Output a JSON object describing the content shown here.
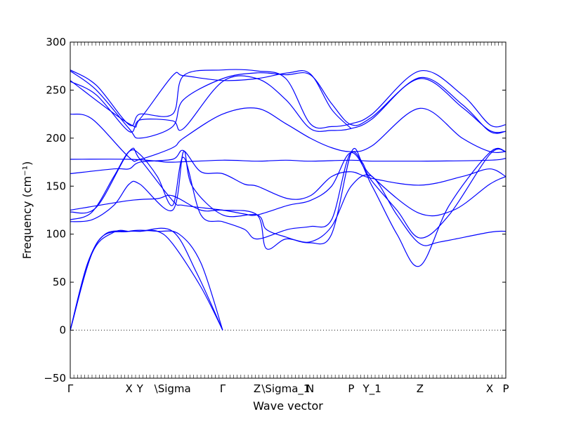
{
  "chart_data": {
    "type": "line",
    "title": "",
    "xlabel": "Wave vector",
    "ylabel": "Frequency (cm⁻¹)",
    "ylim": [
      -50,
      300
    ],
    "yticks": [
      -50,
      0,
      50,
      100,
      150,
      200,
      250,
      300
    ],
    "grid": false,
    "legend": "none",
    "series_color": "#0000ff",
    "zero_line": {
      "value": 0,
      "style": "dotted"
    },
    "xlim": [
      0,
      1
    ],
    "qpoints": [
      {
        "label": "Γ",
        "x": 0.0
      },
      {
        "label": "X",
        "x": 0.135
      },
      {
        "label": "Y",
        "x": 0.16
      },
      {
        "label": "\\Sigma",
        "x": 0.235
      },
      {
        "label": "Γ",
        "x": 0.35
      },
      {
        "label": "Z",
        "x": 0.429
      },
      {
        "label": "\\Sigma_1",
        "x": 0.495
      },
      {
        "label": "N",
        "x": 0.551
      },
      {
        "label": "P",
        "x": 0.645
      },
      {
        "label": "Y_1",
        "x": 0.693
      },
      {
        "label": "Z",
        "x": 0.803
      },
      {
        "label": "X",
        "x": 0.963
      },
      {
        "label": "P",
        "x": 1.0
      }
    ],
    "series": [
      {
        "points": [
          [
            0,
            0
          ],
          [
            0.04,
            70
          ],
          [
            0.08,
            100
          ],
          [
            0.135,
            103
          ],
          [
            0.16,
            103
          ],
          [
            0.235,
            103
          ],
          [
            0.29,
            60
          ],
          [
            0.35,
            0
          ]
        ]
      },
      {
        "points": [
          [
            0,
            0
          ],
          [
            0.05,
            80
          ],
          [
            0.1,
            102
          ],
          [
            0.135,
            103
          ],
          [
            0.16,
            103
          ],
          [
            0.2,
            103
          ],
          [
            0.235,
            90
          ],
          [
            0.3,
            45
          ],
          [
            0.35,
            0
          ]
        ]
      },
      {
        "points": [
          [
            0,
            0
          ],
          [
            0.06,
            90
          ],
          [
            0.135,
            103
          ],
          [
            0.2,
            103
          ],
          [
            0.25,
            100
          ],
          [
            0.3,
            70
          ],
          [
            0.35,
            0
          ]
        ]
      },
      {
        "points": [
          [
            0,
            113
          ],
          [
            0.05,
            115
          ],
          [
            0.1,
            130
          ],
          [
            0.135,
            152
          ],
          [
            0.16,
            152
          ],
          [
            0.235,
            125
          ],
          [
            0.26,
            186
          ],
          [
            0.28,
            150
          ],
          [
            0.35,
            120
          ],
          [
            0.429,
            120
          ],
          [
            0.45,
            105
          ],
          [
            0.495,
            97
          ],
          [
            0.55,
            91
          ],
          [
            0.6,
            100
          ],
          [
            0.645,
            185
          ],
          [
            0.67,
            175
          ],
          [
            0.693,
            160
          ],
          [
            0.8,
            122
          ],
          [
            0.88,
            125
          ],
          [
            0.963,
            152
          ],
          [
            1.0,
            160
          ]
        ]
      },
      {
        "points": [
          [
            0,
            115
          ],
          [
            0.05,
            123
          ],
          [
            0.1,
            160
          ],
          [
            0.135,
            186
          ],
          [
            0.16,
            183
          ],
          [
            0.2,
            160
          ],
          [
            0.235,
            130
          ],
          [
            0.26,
            180
          ],
          [
            0.3,
            120
          ],
          [
            0.35,
            113
          ],
          [
            0.4,
            105
          ],
          [
            0.429,
            95
          ],
          [
            0.5,
            105
          ],
          [
            0.551,
            108
          ],
          [
            0.6,
            115
          ],
          [
            0.645,
            185
          ],
          [
            0.693,
            150
          ],
          [
            0.75,
            100
          ],
          [
            0.803,
            67
          ],
          [
            0.87,
            130
          ],
          [
            0.963,
            185
          ],
          [
            1.0,
            186
          ]
        ]
      },
      {
        "points": [
          [
            0,
            123
          ],
          [
            0.06,
            128
          ],
          [
            0.135,
            186
          ],
          [
            0.16,
            178
          ],
          [
            0.235,
            135
          ],
          [
            0.26,
            130
          ],
          [
            0.35,
            125
          ],
          [
            0.4,
            121
          ],
          [
            0.429,
            120
          ],
          [
            0.5,
            130
          ],
          [
            0.551,
            135
          ],
          [
            0.6,
            150
          ],
          [
            0.645,
            185
          ],
          [
            0.693,
            155
          ],
          [
            0.75,
            125
          ],
          [
            0.803,
            96
          ],
          [
            0.87,
            120
          ],
          [
            0.963,
            183
          ],
          [
            1.0,
            186
          ]
        ]
      },
      {
        "points": [
          [
            0,
            125
          ],
          [
            0.135,
            135
          ],
          [
            0.2,
            137
          ],
          [
            0.235,
            140
          ],
          [
            0.3,
            125
          ],
          [
            0.35,
            125
          ],
          [
            0.429,
            120
          ],
          [
            0.45,
            85
          ],
          [
            0.495,
            95
          ],
          [
            0.551,
            92
          ],
          [
            0.6,
            108
          ],
          [
            0.645,
            150
          ],
          [
            0.693,
            160
          ],
          [
            0.75,
            120
          ],
          [
            0.803,
            90
          ],
          [
            0.85,
            92
          ],
          [
            0.963,
            102
          ],
          [
            1.0,
            103
          ]
        ]
      },
      {
        "points": [
          [
            0,
            163
          ],
          [
            0.1,
            168
          ],
          [
            0.135,
            168
          ],
          [
            0.16,
            175
          ],
          [
            0.235,
            178
          ],
          [
            0.26,
            187
          ],
          [
            0.3,
            165
          ],
          [
            0.35,
            163
          ],
          [
            0.4,
            152
          ],
          [
            0.429,
            150
          ],
          [
            0.5,
            137
          ],
          [
            0.551,
            140
          ],
          [
            0.6,
            160
          ],
          [
            0.645,
            165
          ],
          [
            0.693,
            158
          ],
          [
            0.803,
            151
          ],
          [
            0.9,
            160
          ],
          [
            0.963,
            168
          ],
          [
            1.0,
            160
          ]
        ]
      },
      {
        "points": [
          [
            0,
            178
          ],
          [
            0.135,
            178
          ],
          [
            0.2,
            176
          ],
          [
            0.235,
            175
          ],
          [
            0.35,
            177
          ],
          [
            0.429,
            176
          ],
          [
            0.495,
            177
          ],
          [
            0.551,
            176
          ],
          [
            0.645,
            177
          ],
          [
            0.693,
            176
          ],
          [
            0.803,
            176
          ],
          [
            0.963,
            177
          ],
          [
            1.0,
            179
          ]
        ]
      },
      {
        "points": [
          [
            0,
            225
          ],
          [
            0.05,
            220
          ],
          [
            0.135,
            180
          ],
          [
            0.16,
            178
          ],
          [
            0.235,
            190
          ],
          [
            0.26,
            200
          ],
          [
            0.35,
            225
          ],
          [
            0.429,
            231
          ],
          [
            0.495,
            215
          ],
          [
            0.551,
            200
          ],
          [
            0.6,
            190
          ],
          [
            0.645,
            186
          ],
          [
            0.693,
            192
          ],
          [
            0.803,
            231
          ],
          [
            0.9,
            200
          ],
          [
            0.963,
            186
          ],
          [
            1.0,
            186
          ]
        ]
      },
      {
        "points": [
          [
            0,
            259
          ],
          [
            0.06,
            245
          ],
          [
            0.135,
            207
          ],
          [
            0.16,
            219
          ],
          [
            0.235,
            218
          ],
          [
            0.26,
            210
          ],
          [
            0.35,
            259
          ],
          [
            0.429,
            262
          ],
          [
            0.495,
            240
          ],
          [
            0.551,
            210
          ],
          [
            0.6,
            208
          ],
          [
            0.645,
            210
          ],
          [
            0.693,
            220
          ],
          [
            0.803,
            263
          ],
          [
            0.9,
            235
          ],
          [
            0.963,
            207
          ],
          [
            1.0,
            207
          ]
        ]
      },
      {
        "points": [
          [
            0,
            271
          ],
          [
            0.06,
            255
          ],
          [
            0.135,
            214
          ],
          [
            0.16,
            225
          ],
          [
            0.235,
            225
          ],
          [
            0.26,
            265
          ],
          [
            0.35,
            271
          ],
          [
            0.429,
            270
          ],
          [
            0.495,
            262
          ],
          [
            0.551,
            215
          ],
          [
            0.6,
            212
          ],
          [
            0.645,
            215
          ],
          [
            0.693,
            225
          ],
          [
            0.803,
            270
          ],
          [
            0.9,
            245
          ],
          [
            0.963,
            214
          ],
          [
            1.0,
            214
          ]
        ]
      },
      {
        "points": [
          [
            0,
            270
          ],
          [
            0.06,
            250
          ],
          [
            0.135,
            210
          ],
          [
            0.16,
            200
          ],
          [
            0.235,
            212
          ],
          [
            0.26,
            240
          ],
          [
            0.35,
            262
          ],
          [
            0.429,
            268
          ],
          [
            0.495,
            266
          ],
          [
            0.551,
            266
          ],
          [
            0.6,
            236
          ],
          [
            0.645,
            214
          ],
          [
            0.693,
            222
          ],
          [
            0.803,
            262
          ],
          [
            0.9,
            232
          ],
          [
            0.963,
            208
          ],
          [
            1.0,
            207
          ]
        ]
      },
      {
        "points": [
          [
            0,
            260
          ],
          [
            0.135,
            215
          ],
          [
            0.16,
            220
          ],
          [
            0.235,
            265
          ],
          [
            0.26,
            265
          ],
          [
            0.35,
            260
          ],
          [
            0.429,
            262
          ],
          [
            0.5,
            268
          ],
          [
            0.551,
            267
          ],
          [
            0.6,
            230
          ],
          [
            0.645,
            210
          ]
        ]
      }
    ]
  }
}
